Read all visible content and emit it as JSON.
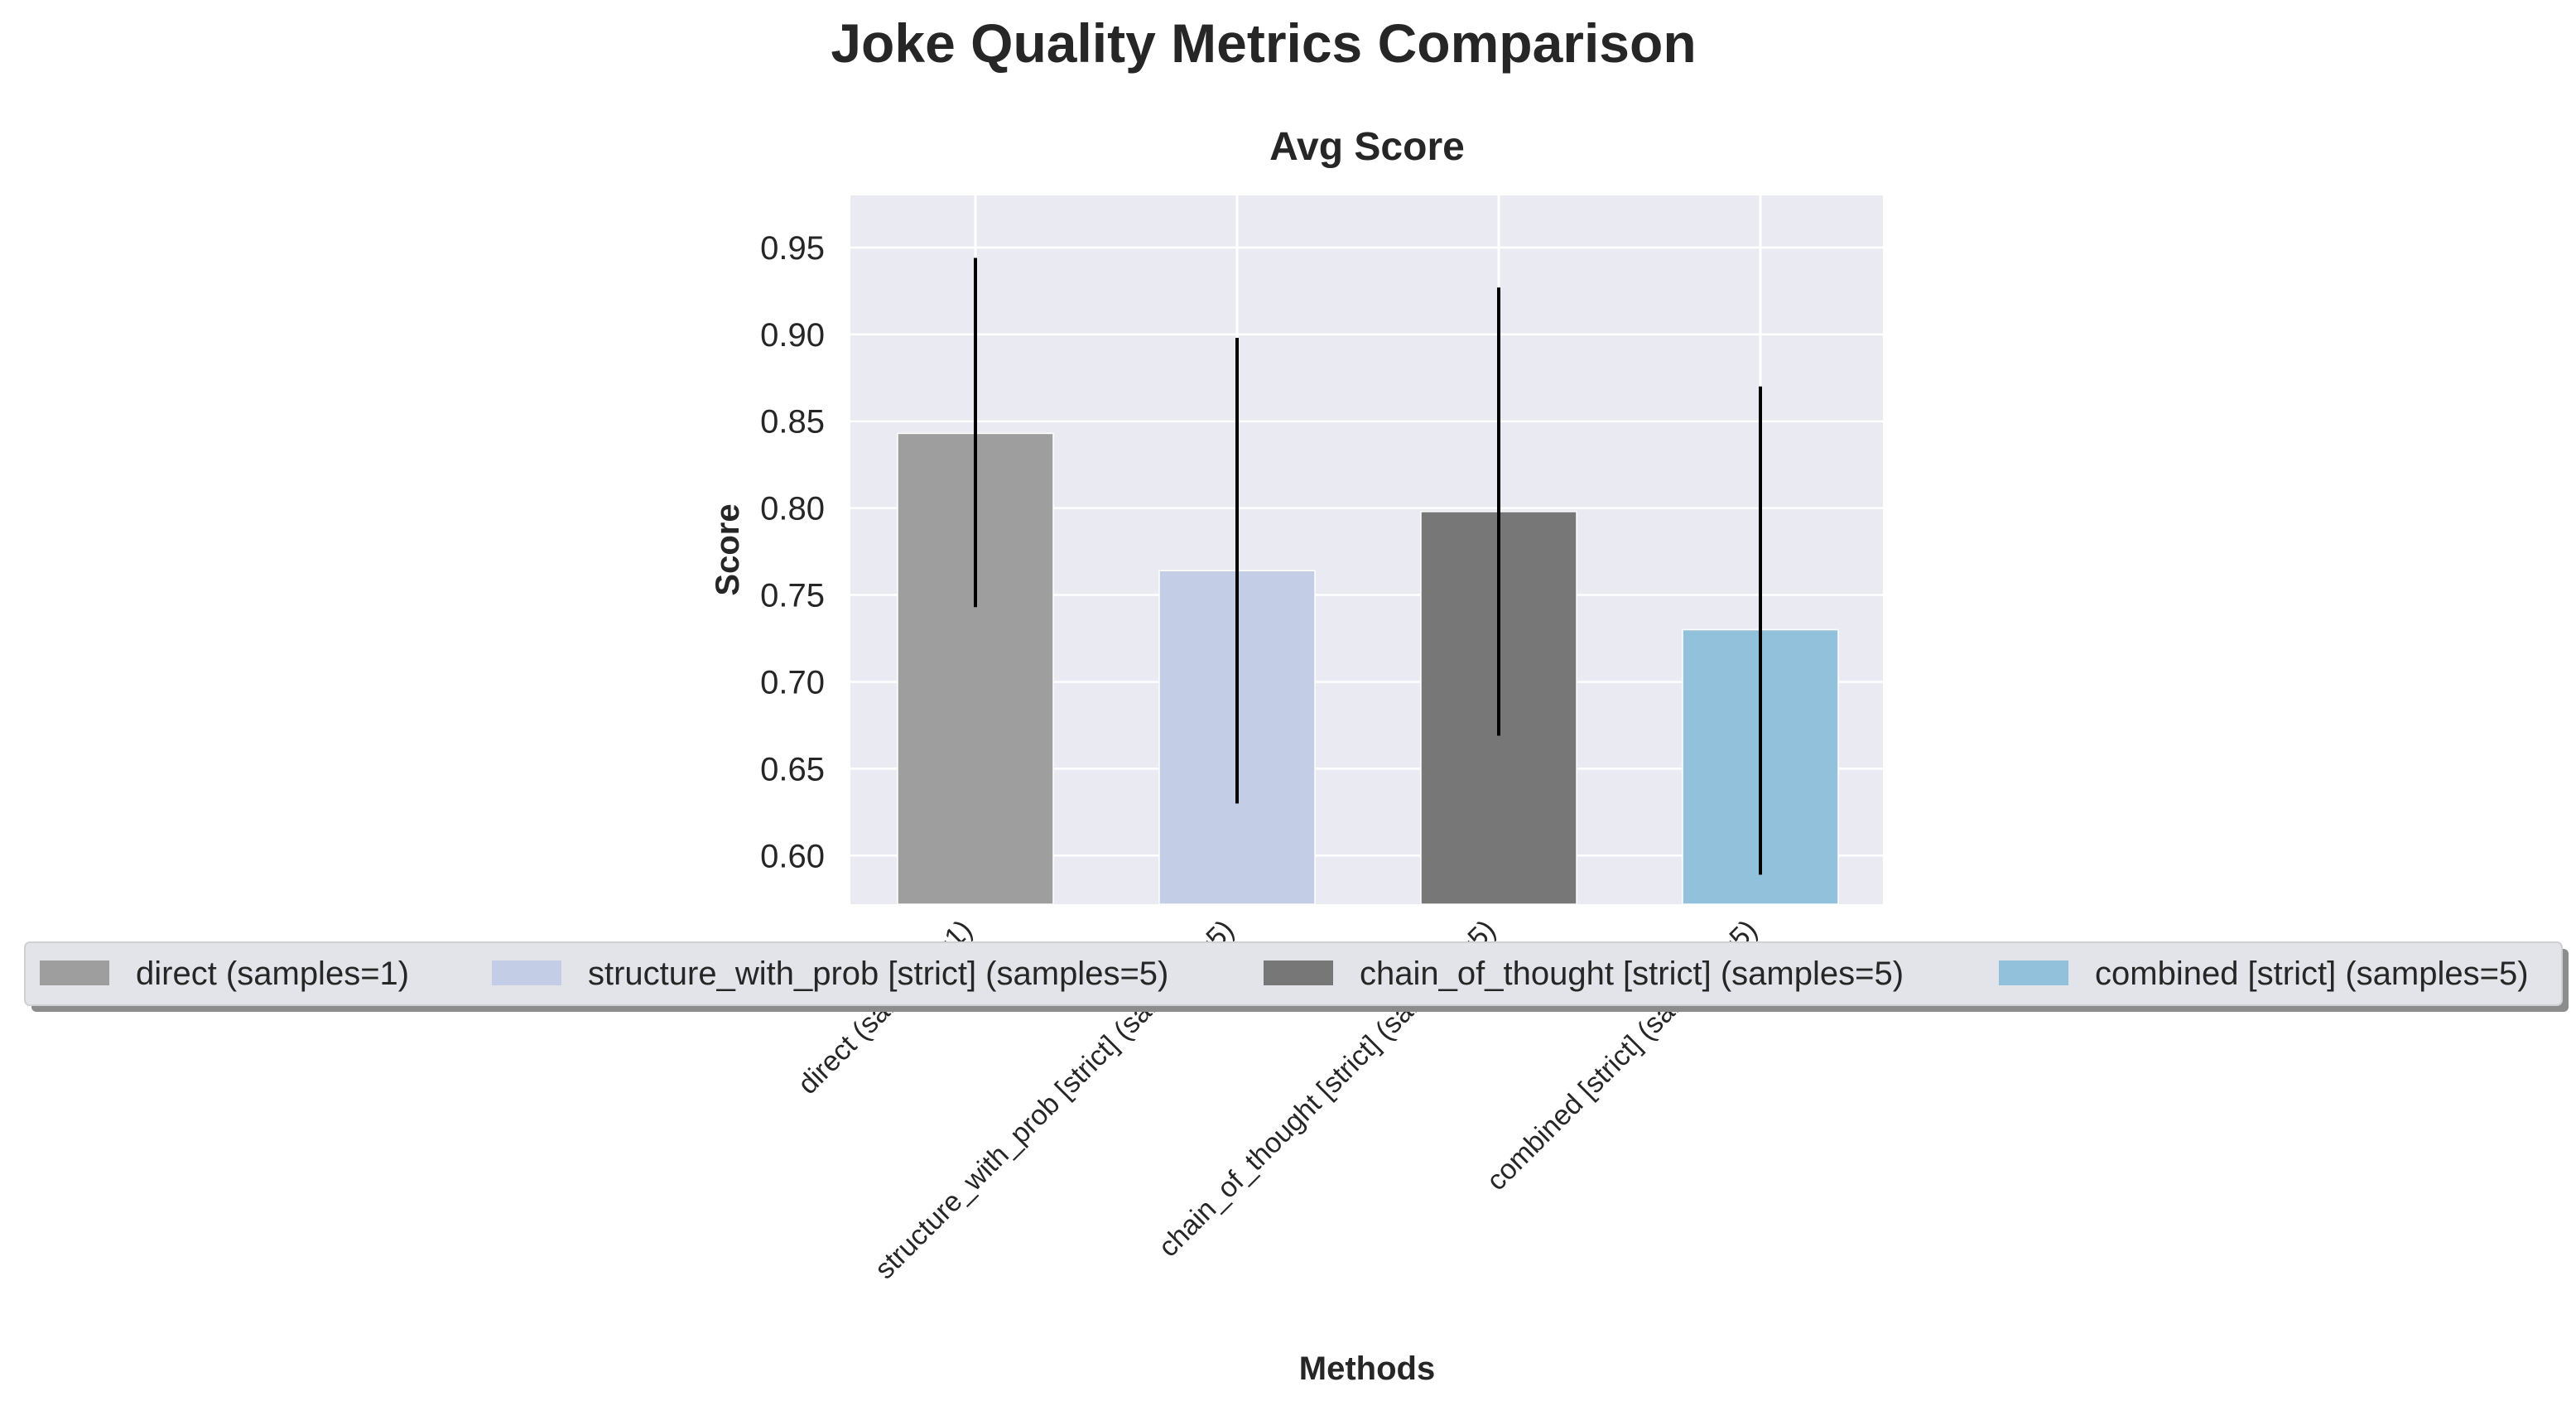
{
  "chart_data": {
    "type": "bar",
    "title": "Joke Quality Metrics Comparison",
    "subtitle": "Avg Score",
    "xlabel": "Methods",
    "ylabel": "Score",
    "ylim": [
      0.572,
      0.98
    ],
    "yticks": [
      "0.60",
      "0.65",
      "0.70",
      "0.75",
      "0.80",
      "0.85",
      "0.90",
      "0.95"
    ],
    "grid": true,
    "legend_position": "bottom-center",
    "categories": [
      "direct (samples=1)",
      "structure_with_prob [strict] (samples=5)",
      "chain_of_thought [strict] (samples=5)",
      "combined [strict] (samples=5)"
    ],
    "values": [
      0.843,
      0.764,
      0.798,
      0.73
    ],
    "error_low": [
      0.743,
      0.63,
      0.669,
      0.589
    ],
    "error_high": [
      0.944,
      0.898,
      0.927,
      0.87
    ],
    "colors": [
      "#9e9e9e",
      "#c3cde6",
      "#777777",
      "#92c2db"
    ],
    "legend": [
      "direct (samples=1)",
      "structure_with_prob [strict] (samples=5)",
      "chain_of_thought [strict] (samples=5)",
      "combined [strict] (samples=5)"
    ]
  }
}
